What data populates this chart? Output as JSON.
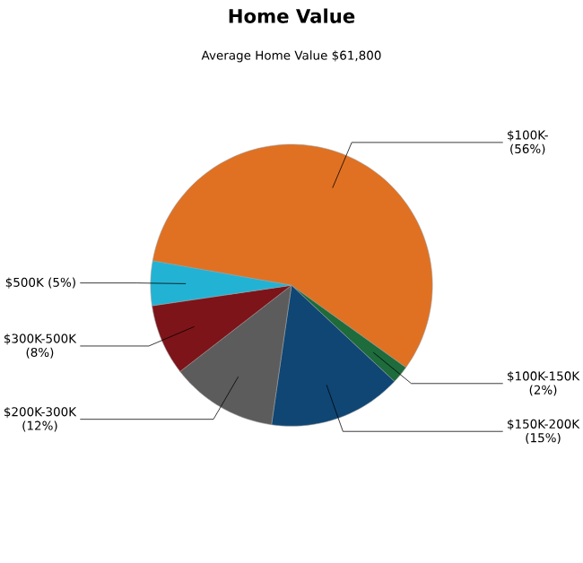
{
  "chart_data": {
    "type": "pie",
    "title": "Home Value",
    "subtitle": "Average Home Value  $61,800",
    "categories": [
      "$100K-",
      "$100K-150K",
      "$150K-200K",
      "$200K-300K",
      "$300K-500K",
      "$500K"
    ],
    "values": [
      56,
      2,
      15,
      12,
      8,
      5
    ],
    "value_labels": [
      "(56%)",
      "(2%)",
      "(15%)",
      "(12%)",
      "(8%)",
      "(5%)"
    ],
    "colors": [
      "#e07122",
      "#1e6b3c",
      "#0f4674",
      "#5c5c5c",
      "#7d1419",
      "#22b3d4"
    ]
  }
}
